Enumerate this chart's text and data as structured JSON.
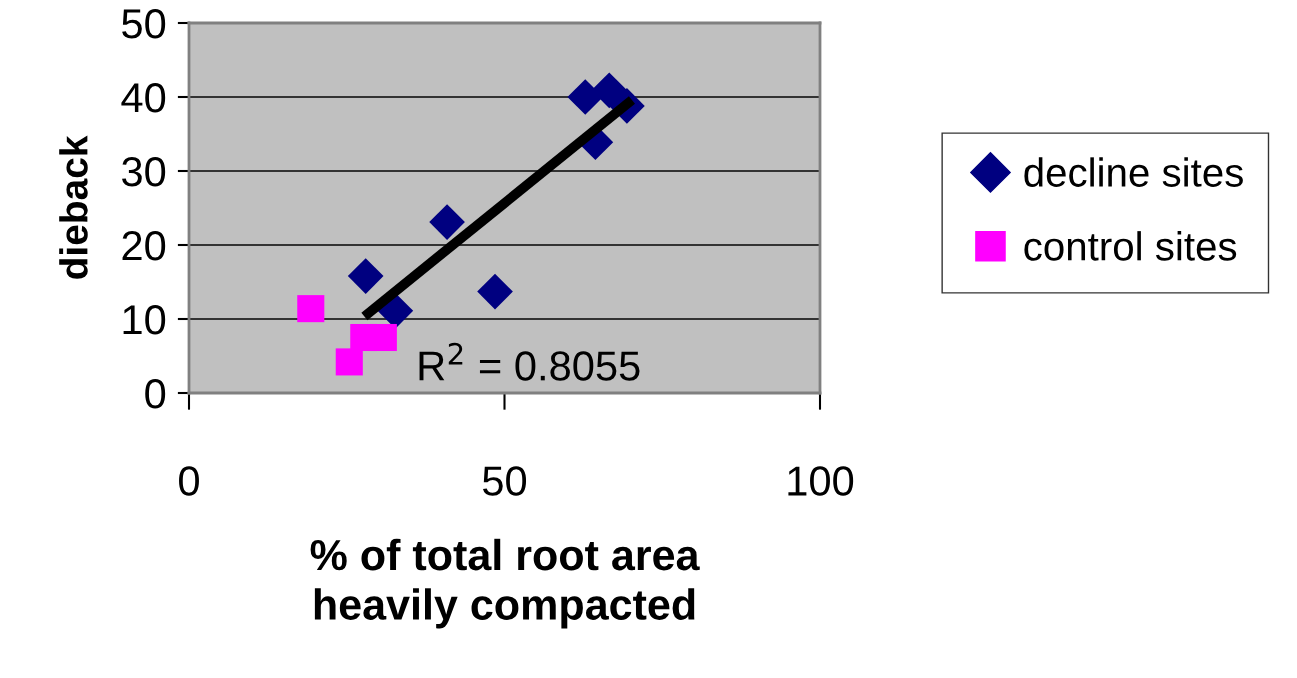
{
  "chart_data": {
    "type": "scatter",
    "xlabel": "% of total root area\nheavily compacted",
    "ylabel": "dieback",
    "xlim": [
      0,
      100
    ],
    "xticks": [
      0,
      50,
      100
    ],
    "ylim": [
      0,
      50
    ],
    "yticks": [
      0,
      10,
      20,
      30,
      40,
      50
    ],
    "grid": "y",
    "legend": "right",
    "series": [
      {
        "name": "decline sites",
        "color": "#000080",
        "marker": "diamond",
        "x": [
          62.8,
          66.6,
          69.4,
          64.4,
          40.9,
          28.0,
          32.7,
          48.5
        ],
        "values": [
          40.0,
          40.9,
          38.8,
          33.9,
          23.1,
          15.8,
          11.1,
          13.7
        ]
      },
      {
        "name": "control sites",
        "color": "#ff00ff",
        "marker": "square",
        "x": [
          19.3,
          27.7,
          30.8,
          25.4
        ],
        "values": [
          11.4,
          7.5,
          7.5,
          4.2
        ]
      },
      {
        "type": "line",
        "color": "#000000",
        "marker": "none",
        "x": [
          27.8,
          70.2
        ],
        "values": [
          10.35,
          39.6
        ]
      }
    ],
    "annotations": [
      "R$^{2}$ = 0.8055"
    ]
  }
}
